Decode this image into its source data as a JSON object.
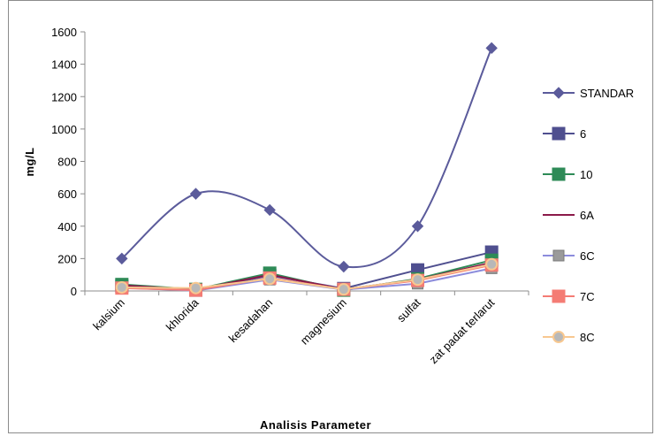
{
  "chart_data": {
    "type": "line",
    "title": "",
    "xlabel": "Analisis Parameter",
    "ylabel": "mg/L",
    "ylim": [
      0,
      1600
    ],
    "yticks": [
      0,
      200,
      400,
      600,
      800,
      1000,
      1200,
      1400,
      1600
    ],
    "grid": false,
    "legend_position": "right",
    "categories": [
      "kalsium",
      "khlorida",
      "kesadahan",
      "magnesium",
      "sulfat",
      "zat padat terlarut"
    ],
    "series": [
      {
        "name": "STANDAR",
        "values": [
          200,
          600,
          500,
          150,
          400,
          1500
        ],
        "color": "#5b5b9b",
        "marker": "diamond",
        "smooth": true
      },
      {
        "name": "6",
        "values": [
          30,
          5,
          95,
          15,
          130,
          240
        ],
        "color": "#4f4f8f",
        "marker": "square"
      },
      {
        "name": "10",
        "values": [
          40,
          10,
          110,
          5,
          75,
          190
        ],
        "color": "#2e8b57",
        "marker": "square"
      },
      {
        "name": "6A",
        "values": [
          35,
          8,
          100,
          10,
          70,
          175
        ],
        "color": "#8b1a4a",
        "marker": "dash"
      },
      {
        "name": "6C",
        "values": [
          20,
          2,
          70,
          8,
          45,
          140
        ],
        "color": "#8c8cdc",
        "marker": "square-gray"
      },
      {
        "name": "7C",
        "values": [
          18,
          5,
          80,
          10,
          65,
          160
        ],
        "color": "#f47c74",
        "marker": "square"
      },
      {
        "name": "8C",
        "values": [
          22,
          18,
          75,
          10,
          70,
          165
        ],
        "color": "#f8c890",
        "marker": "circle"
      }
    ]
  }
}
